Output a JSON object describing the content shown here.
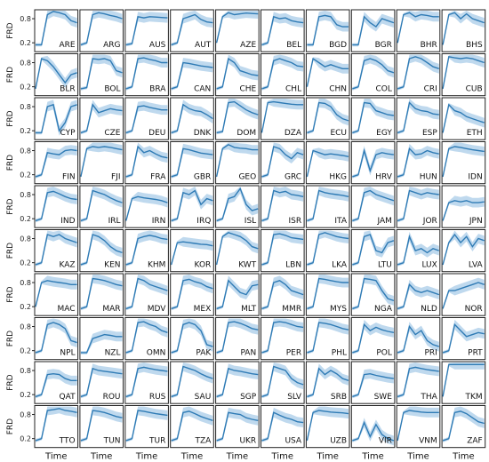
{
  "chart_data": {
    "type": "line",
    "layout": "small-multiples 10x10",
    "ylabel": "FRD",
    "xlabel": "Time",
    "ylim": [
      0,
      1
    ],
    "yticks": [
      "0.2",
      "0.8"
    ],
    "grid": false,
    "line_color": "#2f7bb5",
    "band_color": "#a9cce8",
    "panels": [
      {
        "label": "ARE",
        "values": [
          0.15,
          0.15,
          0.9,
          0.98,
          0.95,
          0.9,
          0.75,
          0.7
        ]
      },
      {
        "label": "ARG",
        "values": [
          0.15,
          0.2,
          0.9,
          0.95,
          0.92,
          0.88,
          0.85,
          0.8
        ]
      },
      {
        "label": "AUS",
        "values": [
          0.15,
          0.18,
          0.85,
          0.82,
          0.85,
          0.84,
          0.83,
          0.82
        ]
      },
      {
        "label": "AUT",
        "values": [
          0.15,
          0.2,
          0.8,
          0.85,
          0.9,
          0.78,
          0.72,
          0.7
        ]
      },
      {
        "label": "AZE",
        "values": [
          0.2,
          0.85,
          0.95,
          0.9,
          0.92,
          0.94,
          0.93,
          0.92
        ]
      },
      {
        "label": "BEL",
        "values": [
          0.15,
          0.2,
          0.85,
          0.8,
          0.82,
          0.75,
          0.72,
          0.7
        ]
      },
      {
        "label": "BGD",
        "values": [
          0.15,
          0.15,
          0.85,
          0.88,
          0.85,
          0.65,
          0.6,
          0.6
        ]
      },
      {
        "label": "BGR",
        "values": [
          0.15,
          0.15,
          0.85,
          0.7,
          0.6,
          0.8,
          0.75,
          0.7
        ]
      },
      {
        "label": "BHR",
        "values": [
          0.2,
          0.9,
          0.95,
          0.85,
          0.9,
          0.88,
          0.85,
          0.85
        ]
      },
      {
        "label": "BHS",
        "values": [
          0.15,
          0.9,
          0.95,
          0.8,
          0.92,
          0.8,
          0.75,
          0.7
        ]
      },
      {
        "label": "BLR",
        "values": [
          0.15,
          0.9,
          0.85,
          0.7,
          0.5,
          0.3,
          0.5,
          0.55
        ]
      },
      {
        "label": "BOL",
        "values": [
          0.15,
          0.18,
          0.9,
          0.88,
          0.9,
          0.85,
          0.6,
          0.55
        ]
      },
      {
        "label": "BRA",
        "values": [
          0.15,
          0.2,
          0.9,
          0.92,
          0.88,
          0.85,
          0.8,
          0.8
        ]
      },
      {
        "label": "CAN",
        "values": [
          0.15,
          0.2,
          0.8,
          0.78,
          0.75,
          0.72,
          0.7,
          0.68
        ]
      },
      {
        "label": "CHE",
        "values": [
          0.15,
          0.2,
          0.9,
          0.8,
          0.6,
          0.55,
          0.5,
          0.48
        ]
      },
      {
        "label": "CHL",
        "values": [
          0.15,
          0.2,
          0.85,
          0.9,
          0.85,
          0.8,
          0.72,
          0.7
        ]
      },
      {
        "label": "CHN",
        "values": [
          0.2,
          0.9,
          0.8,
          0.7,
          0.75,
          0.7,
          0.65,
          0.65
        ]
      },
      {
        "label": "COL",
        "values": [
          0.15,
          0.2,
          0.85,
          0.9,
          0.85,
          0.75,
          0.6,
          0.55
        ]
      },
      {
        "label": "CRI",
        "values": [
          0.15,
          0.2,
          0.9,
          0.95,
          0.9,
          0.8,
          0.7,
          0.65
        ]
      },
      {
        "label": "CUB",
        "values": [
          0.15,
          0.95,
          0.92,
          0.9,
          0.92,
          0.9,
          0.85,
          0.8
        ]
      },
      {
        "label": "CYP",
        "values": [
          0.15,
          0.15,
          0.8,
          0.85,
          0.2,
          0.4,
          0.8,
          0.85
        ]
      },
      {
        "label": "CZE",
        "values": [
          0.15,
          0.2,
          0.85,
          0.65,
          0.7,
          0.75,
          0.72,
          0.7
        ]
      },
      {
        "label": "DEU",
        "values": [
          0.15,
          0.2,
          0.8,
          0.82,
          0.78,
          0.75,
          0.72,
          0.72
        ]
      },
      {
        "label": "DNK",
        "values": [
          0.15,
          0.2,
          0.85,
          0.75,
          0.7,
          0.68,
          0.6,
          0.5
        ]
      },
      {
        "label": "DOM",
        "values": [
          0.15,
          0.18,
          0.9,
          0.92,
          0.82,
          0.72,
          0.65,
          0.6
        ]
      },
      {
        "label": "DZA",
        "values": [
          0.15,
          0.9,
          0.92,
          0.9,
          0.88,
          0.86,
          0.85,
          0.85
        ]
      },
      {
        "label": "ECU",
        "values": [
          0.15,
          0.2,
          0.9,
          0.88,
          0.8,
          0.6,
          0.5,
          0.45
        ]
      },
      {
        "label": "EGY",
        "values": [
          0.15,
          0.2,
          0.9,
          0.88,
          0.7,
          0.65,
          0.6,
          0.58
        ]
      },
      {
        "label": "ESP",
        "values": [
          0.15,
          0.2,
          0.9,
          0.75,
          0.7,
          0.68,
          0.62,
          0.6
        ]
      },
      {
        "label": "ETH",
        "values": [
          0.15,
          0.85,
          0.7,
          0.65,
          0.55,
          0.5,
          0.45,
          0.4
        ]
      },
      {
        "label": "FIN",
        "values": [
          0.15,
          0.2,
          0.75,
          0.72,
          0.7,
          0.8,
          0.82,
          0.8
        ]
      },
      {
        "label": "FJI",
        "values": [
          0.15,
          0.85,
          0.9,
          0.88,
          0.9,
          0.88,
          0.85,
          0.82
        ]
      },
      {
        "label": "FRA",
        "values": [
          0.15,
          0.2,
          0.9,
          0.75,
          0.8,
          0.72,
          0.65,
          0.62
        ]
      },
      {
        "label": "GBR",
        "values": [
          0.15,
          0.2,
          0.85,
          0.82,
          0.78,
          0.74,
          0.72,
          0.7
        ]
      },
      {
        "label": "GEO",
        "values": [
          0.15,
          0.85,
          0.95,
          0.88,
          0.86,
          0.85,
          0.82,
          0.82
        ]
      },
      {
        "label": "GRC",
        "values": [
          0.15,
          0.2,
          0.9,
          0.85,
          0.7,
          0.6,
          0.75,
          0.7
        ]
      },
      {
        "label": "HKG",
        "values": [
          0.15,
          0.8,
          0.75,
          0.7,
          0.72,
          0.7,
          0.68,
          0.65
        ]
      },
      {
        "label": "HRV",
        "values": [
          0.15,
          0.2,
          0.8,
          0.3,
          0.7,
          0.75,
          0.72,
          0.7
        ]
      },
      {
        "label": "HUN",
        "values": [
          0.15,
          0.2,
          0.85,
          0.7,
          0.72,
          0.8,
          0.75,
          0.72
        ]
      },
      {
        "label": "IDN",
        "values": [
          0.15,
          0.85,
          0.9,
          0.88,
          0.85,
          0.82,
          0.8,
          0.78
        ]
      },
      {
        "label": "IND",
        "values": [
          0.15,
          0.2,
          0.85,
          0.88,
          0.82,
          0.75,
          0.7,
          0.68
        ]
      },
      {
        "label": "IRL",
        "values": [
          0.15,
          0.2,
          0.9,
          0.85,
          0.8,
          0.72,
          0.65,
          0.6
        ]
      },
      {
        "label": "IRN",
        "values": [
          0.15,
          0.7,
          0.75,
          0.72,
          0.7,
          0.68,
          0.65,
          0.6
        ]
      },
      {
        "label": "IRQ",
        "values": [
          0.15,
          0.2,
          0.85,
          0.8,
          0.9,
          0.55,
          0.7,
          0.65
        ]
      },
      {
        "label": "ISL",
        "values": [
          0.15,
          0.2,
          0.7,
          0.75,
          0.95,
          0.55,
          0.4,
          0.45
        ]
      },
      {
        "label": "ISR",
        "values": [
          0.15,
          0.2,
          0.9,
          0.85,
          0.88,
          0.8,
          0.78,
          0.75
        ]
      },
      {
        "label": "ITA",
        "values": [
          0.15,
          0.2,
          0.9,
          0.85,
          0.82,
          0.8,
          0.78,
          0.75
        ]
      },
      {
        "label": "JAM",
        "values": [
          0.15,
          0.2,
          0.85,
          0.9,
          0.8,
          0.75,
          0.7,
          0.65
        ]
      },
      {
        "label": "JOR",
        "values": [
          0.15,
          0.2,
          0.9,
          0.85,
          0.8,
          0.85,
          0.82,
          0.8
        ]
      },
      {
        "label": "JPN",
        "values": [
          0.15,
          0.6,
          0.65,
          0.62,
          0.65,
          0.6,
          0.6,
          0.62
        ]
      },
      {
        "label": "KAZ",
        "values": [
          0.15,
          0.2,
          0.9,
          0.85,
          0.9,
          0.8,
          0.75,
          0.7
        ]
      },
      {
        "label": "KEN",
        "values": [
          0.15,
          0.2,
          0.9,
          0.85,
          0.75,
          0.6,
          0.5,
          0.45
        ]
      },
      {
        "label": "KHM",
        "values": [
          0.15,
          0.2,
          0.8,
          0.85,
          0.88,
          0.85,
          0.8,
          0.78
        ]
      },
      {
        "label": "KOR",
        "values": [
          0.15,
          0.7,
          0.72,
          0.7,
          0.68,
          0.66,
          0.65,
          0.62
        ]
      },
      {
        "label": "KWT",
        "values": [
          0.15,
          0.85,
          0.95,
          0.9,
          0.85,
          0.75,
          0.6,
          0.55
        ]
      },
      {
        "label": "LBN",
        "values": [
          0.15,
          0.2,
          0.9,
          0.92,
          0.88,
          0.82,
          0.8,
          0.78
        ]
      },
      {
        "label": "LKA",
        "values": [
          0.15,
          0.2,
          0.9,
          0.95,
          0.9,
          0.85,
          0.82,
          0.8
        ]
      },
      {
        "label": "LTU",
        "values": [
          0.15,
          0.2,
          0.85,
          0.9,
          0.5,
          0.45,
          0.7,
          0.75
        ]
      },
      {
        "label": "LUX",
        "values": [
          0.15,
          0.2,
          0.85,
          0.5,
          0.55,
          0.45,
          0.55,
          0.5
        ]
      },
      {
        "label": "LVA",
        "values": [
          0.15,
          0.7,
          0.9,
          0.7,
          0.85,
          0.6,
          0.8,
          0.75
        ]
      },
      {
        "label": "MAC",
        "values": [
          0.2,
          0.8,
          0.85,
          0.82,
          0.8,
          0.78,
          0.75,
          0.75
        ]
      },
      {
        "label": "MAR",
        "values": [
          0.15,
          0.2,
          0.9,
          0.88,
          0.85,
          0.8,
          0.75,
          0.72
        ]
      },
      {
        "label": "MDV",
        "values": [
          0.15,
          0.2,
          0.9,
          0.85,
          0.75,
          0.7,
          0.65,
          0.6
        ]
      },
      {
        "label": "MEX",
        "values": [
          0.15,
          0.2,
          0.85,
          0.88,
          0.82,
          0.78,
          0.7,
          0.65
        ]
      },
      {
        "label": "MLT",
        "values": [
          0.15,
          0.2,
          0.85,
          0.7,
          0.55,
          0.5,
          0.72,
          0.75
        ]
      },
      {
        "label": "MMR",
        "values": [
          0.15,
          0.2,
          0.8,
          0.85,
          0.75,
          0.6,
          0.55,
          0.5
        ]
      },
      {
        "label": "MYS",
        "values": [
          0.15,
          0.2,
          0.9,
          0.88,
          0.85,
          0.82,
          0.8,
          0.8
        ]
      },
      {
        "label": "NGA",
        "values": [
          0.15,
          0.2,
          0.9,
          0.88,
          0.85,
          0.6,
          0.4,
          0.35
        ]
      },
      {
        "label": "NLD",
        "values": [
          0.15,
          0.2,
          0.75,
          0.6,
          0.55,
          0.6,
          0.55,
          0.5
        ]
      },
      {
        "label": "NOR",
        "values": [
          0.15,
          0.6,
          0.6,
          0.65,
          0.7,
          0.75,
          0.8,
          0.75
        ]
      },
      {
        "label": "NPL",
        "values": [
          0.15,
          0.2,
          0.85,
          0.9,
          0.85,
          0.75,
          0.45,
          0.4
        ]
      },
      {
        "label": "NZL",
        "values": [
          0.15,
          0.15,
          0.5,
          0.55,
          0.6,
          0.58,
          0.55,
          0.55
        ]
      },
      {
        "label": "OMN",
        "values": [
          0.15,
          0.2,
          0.9,
          0.92,
          0.85,
          0.8,
          0.7,
          0.65
        ]
      },
      {
        "label": "PAK",
        "values": [
          0.15,
          0.2,
          0.85,
          0.9,
          0.85,
          0.7,
          0.35,
          0.3
        ]
      },
      {
        "label": "PAN",
        "values": [
          0.15,
          0.2,
          0.9,
          0.92,
          0.88,
          0.82,
          0.75,
          0.72
        ]
      },
      {
        "label": "PER",
        "values": [
          0.15,
          0.2,
          0.9,
          0.92,
          0.9,
          0.85,
          0.8,
          0.78
        ]
      },
      {
        "label": "PHL",
        "values": [
          0.15,
          0.2,
          0.9,
          0.88,
          0.85,
          0.8,
          0.75,
          0.72
        ]
      },
      {
        "label": "POL",
        "values": [
          0.15,
          0.2,
          0.85,
          0.7,
          0.78,
          0.72,
          0.68,
          0.65
        ]
      },
      {
        "label": "PRI",
        "values": [
          0.15,
          0.2,
          0.8,
          0.6,
          0.7,
          0.45,
          0.35,
          0.3
        ]
      },
      {
        "label": "PRT",
        "values": [
          0.15,
          0.2,
          0.85,
          0.7,
          0.55,
          0.6,
          0.65,
          0.62
        ]
      },
      {
        "label": "QAT",
        "values": [
          0.15,
          0.2,
          0.7,
          0.72,
          0.7,
          0.6,
          0.55,
          0.55
        ]
      },
      {
        "label": "ROU",
        "values": [
          0.15,
          0.2,
          0.85,
          0.8,
          0.78,
          0.76,
          0.74,
          0.72
        ]
      },
      {
        "label": "RUS",
        "values": [
          0.15,
          0.2,
          0.85,
          0.88,
          0.85,
          0.82,
          0.8,
          0.78
        ]
      },
      {
        "label": "SAU",
        "values": [
          0.15,
          0.2,
          0.9,
          0.85,
          0.8,
          0.72,
          0.65,
          0.6
        ]
      },
      {
        "label": "SGP",
        "values": [
          0.15,
          0.2,
          0.85,
          0.8,
          0.78,
          0.75,
          0.72,
          0.7
        ]
      },
      {
        "label": "SLV",
        "values": [
          0.15,
          0.2,
          0.9,
          0.85,
          0.8,
          0.6,
          0.5,
          0.45
        ]
      },
      {
        "label": "SRB",
        "values": [
          0.15,
          0.2,
          0.85,
          0.7,
          0.8,
          0.72,
          0.6,
          0.55
        ]
      },
      {
        "label": "SWE",
        "values": [
          0.15,
          0.2,
          0.7,
          0.72,
          0.68,
          0.65,
          0.62,
          0.6
        ]
      },
      {
        "label": "THA",
        "values": [
          0.15,
          0.2,
          0.85,
          0.88,
          0.85,
          0.82,
          0.8,
          0.78
        ]
      },
      {
        "label": "TKM",
        "values": [
          0.15,
          0.95,
          0.95,
          0.95,
          0.95,
          0.95,
          0.95,
          0.95
        ]
      },
      {
        "label": "TTO",
        "values": [
          0.15,
          0.2,
          0.9,
          0.92,
          0.95,
          0.9,
          0.88,
          0.85
        ]
      },
      {
        "label": "TUN",
        "values": [
          0.15,
          0.2,
          0.9,
          0.88,
          0.85,
          0.8,
          0.75,
          0.72
        ]
      },
      {
        "label": "TUR",
        "values": [
          0.15,
          0.2,
          0.9,
          0.88,
          0.85,
          0.82,
          0.8,
          0.78
        ]
      },
      {
        "label": "TZA",
        "values": [
          0.15,
          0.2,
          0.85,
          0.88,
          0.82,
          0.75,
          0.7,
          0.65
        ]
      },
      {
        "label": "UKR",
        "values": [
          0.15,
          0.2,
          0.85,
          0.82,
          0.8,
          0.72,
          0.68,
          0.65
        ]
      },
      {
        "label": "USA",
        "values": [
          0.15,
          0.2,
          0.85,
          0.78,
          0.72,
          0.68,
          0.62,
          0.6
        ]
      },
      {
        "label": "UZB",
        "values": [
          0.15,
          0.85,
          0.9,
          0.88,
          0.86,
          0.85,
          0.84,
          0.82
        ]
      },
      {
        "label": "VIR",
        "values": [
          0.15,
          0.2,
          0.6,
          0.25,
          0.55,
          0.3,
          0.2,
          0.15
        ]
      },
      {
        "label": "VNM",
        "values": [
          0.15,
          0.85,
          0.9,
          0.88,
          0.86,
          0.85,
          0.85,
          0.85
        ]
      },
      {
        "label": "ZAF",
        "values": [
          0.15,
          0.2,
          0.85,
          0.88,
          0.82,
          0.72,
          0.62,
          0.58
        ]
      }
    ]
  }
}
